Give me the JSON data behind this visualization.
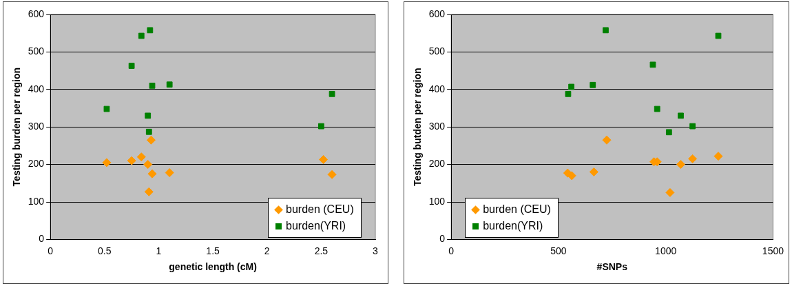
{
  "chart_data": [
    {
      "type": "scatter",
      "xlabel": "genetic length (cM)",
      "ylabel": "Testing burden per region",
      "xlim": [
        0,
        3
      ],
      "xticks": [
        0,
        0.5,
        1,
        1.5,
        2,
        2.5,
        3
      ],
      "ylim": [
        0,
        600
      ],
      "yticks": [
        0,
        100,
        200,
        300,
        400,
        500,
        600
      ],
      "grid": "y",
      "legend": "bottom right",
      "series": [
        {
          "name": "burden (CEU)",
          "color": "#ff9900",
          "marker": "diamond",
          "x": [
            0.52,
            0.75,
            0.84,
            0.9,
            0.93,
            0.94,
            0.91,
            1.1,
            2.52,
            2.6
          ],
          "values": [
            205,
            210,
            220,
            200,
            265,
            175,
            127,
            178,
            213,
            173
          ]
        },
        {
          "name": "burden(YRI)",
          "color": "#008000",
          "marker": "square",
          "x": [
            0.52,
            0.75,
            0.84,
            0.92,
            0.94,
            1.1,
            0.9,
            0.91,
            2.5,
            2.6
          ],
          "values": [
            348,
            463,
            543,
            558,
            410,
            413,
            330,
            287,
            302,
            388
          ]
        }
      ]
    },
    {
      "type": "scatter",
      "xlabel": "#SNPs",
      "ylabel": "Testing butden per region",
      "xlim": [
        0,
        1500
      ],
      "xticks": [
        0,
        500,
        1000,
        1500
      ],
      "ylim": [
        0,
        600
      ],
      "yticks": [
        0,
        100,
        200,
        300,
        400,
        500,
        600
      ],
      "grid": "y",
      "legend": "bottom left",
      "series": [
        {
          "name": "burden (CEU)",
          "color": "#ff9900",
          "marker": "diamond",
          "x": [
            543,
            562,
            665,
            725,
            945,
            960,
            1020,
            1070,
            1125,
            1245
          ],
          "values": [
            177,
            170,
            180,
            265,
            207,
            207,
            125,
            200,
            215,
            222
          ]
        },
        {
          "name": "burden(YRI)",
          "color": "#008000",
          "marker": "square",
          "x": [
            545,
            560,
            660,
            720,
            940,
            960,
            1070,
            1015,
            1125,
            1245
          ],
          "values": [
            388,
            407,
            412,
            558,
            466,
            348,
            330,
            286,
            302,
            543
          ]
        }
      ]
    }
  ]
}
